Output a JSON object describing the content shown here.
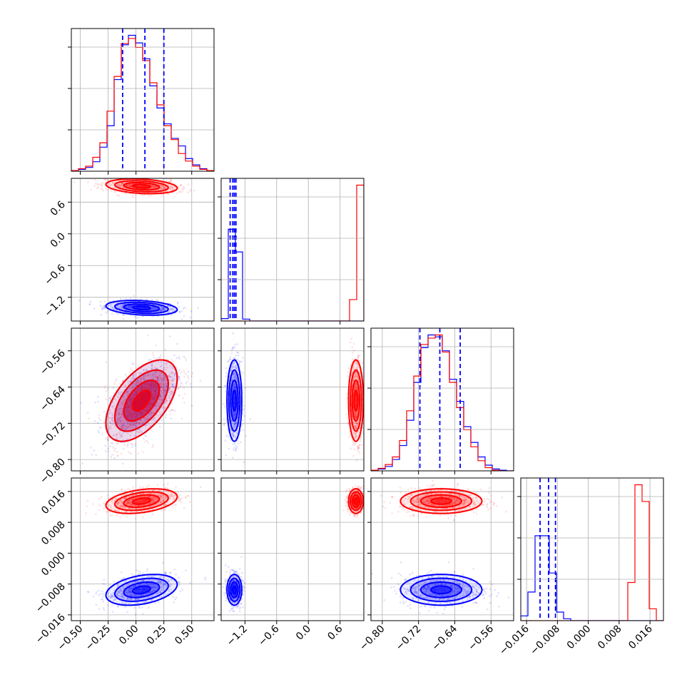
{
  "chart_data": {
    "type": "corner",
    "grid": true,
    "series": [
      {
        "color": "#ff0000",
        "means": [
          0.05,
          0.9,
          -0.67,
          0.0135
        ],
        "sds": [
          0.16,
          0.07,
          0.045,
          0.0016
        ]
      },
      {
        "color": "#0000ff",
        "means": [
          0.05,
          -1.4,
          -0.67,
          -0.0095
        ],
        "sds": [
          0.16,
          0.07,
          0.045,
          0.002
        ]
      }
    ],
    "quantiles": [
      {
        "values": [
          -0.12,
          0.08,
          0.25
        ]
      },
      {
        "values": [
          -1.48,
          -1.43,
          -1.4,
          -1.37
        ]
      },
      {
        "values": [
          -0.717,
          -0.673,
          -0.628
        ]
      },
      {
        "values": [
          -0.0125,
          -0.0103,
          -0.0085
        ]
      }
    ],
    "params": [
      {
        "range": [
          -0.58,
          0.7
        ],
        "ticks": [
          -0.5,
          -0.25,
          0.0,
          0.25,
          0.5
        ],
        "tick_labels": [
          "−0.50",
          "−0.25",
          "0.00",
          "0.25",
          "0.50"
        ]
      },
      {
        "range": [
          -1.65,
          1.05
        ],
        "ticks": [
          -1.2,
          -0.6,
          0.0,
          0.6
        ],
        "tick_labels": [
          "−1.2",
          "−0.6",
          "0.0",
          "0.6"
        ]
      },
      {
        "range": [
          -0.825,
          -0.51
        ],
        "ticks": [
          -0.8,
          -0.72,
          -0.64,
          -0.56
        ],
        "tick_labels": [
          "−0.80",
          "−0.72",
          "−0.64",
          "−0.56"
        ]
      },
      {
        "range": [
          -0.0175,
          0.0195
        ],
        "ticks": [
          -0.016,
          -0.008,
          0.0,
          0.008,
          0.016
        ],
        "tick_labels": [
          "−0.016",
          "−0.008",
          "0.000",
          "0.008",
          "0.016"
        ]
      }
    ],
    "histograms": [
      {
        "edges": [
          -0.58,
          -0.516,
          -0.452,
          -0.388,
          -0.324,
          -0.26,
          -0.196,
          -0.132,
          -0.068,
          -0.004,
          0.06,
          0.124,
          0.188,
          0.252,
          0.316,
          0.38,
          0.444,
          0.508,
          0.572,
          0.636,
          0.7
        ],
        "counts": {
          "red": [
            1,
            4,
            8,
            22,
            45,
            95,
            150,
            202,
            210,
            196,
            175,
            140,
            105,
            72,
            50,
            28,
            16,
            8,
            3,
            1
          ],
          "blue": [
            1,
            3,
            6,
            15,
            38,
            72,
            145,
            200,
            215,
            203,
            178,
            135,
            100,
            75,
            52,
            40,
            20,
            10,
            4,
            1
          ]
        }
      },
      {
        "edges": [
          -1.65,
          -1.515,
          -1.38,
          -1.245,
          -1.11,
          -0.975,
          -0.84,
          -0.705,
          -0.57,
          -0.435,
          -0.3,
          -0.165,
          -0.03,
          0.105,
          0.24,
          0.375,
          0.51,
          0.645,
          0.78,
          0.915,
          1.05
        ],
        "counts": {
          "red": [
            0,
            0,
            0,
            0,
            0,
            0,
            0,
            0,
            0,
            0,
            0,
            0,
            0,
            0,
            0,
            0,
            0,
            0,
            90,
            570
          ],
          "blue": [
            10,
            385,
            290,
            8,
            0,
            0,
            0,
            0,
            0,
            0,
            0,
            0,
            0,
            0,
            0,
            0,
            0,
            0,
            0,
            0
          ]
        }
      },
      {
        "edges": [
          -0.825,
          -0.80925,
          -0.7935,
          -0.77775,
          -0.762,
          -0.74625,
          -0.7305,
          -0.71475,
          -0.699,
          -0.68325,
          -0.6675,
          -0.65175,
          -0.636,
          -0.62025,
          -0.6045,
          -0.58875,
          -0.573,
          -0.55725,
          -0.5415,
          -0.52575,
          -0.51
        ],
        "counts": {
          "red": [
            1,
            4,
            10,
            22,
            48,
            95,
            150,
            200,
            210,
            215,
            188,
            140,
            100,
            65,
            38,
            16,
            5,
            1,
            0,
            0
          ],
          "blue": [
            1,
            3,
            7,
            18,
            40,
            80,
            140,
            195,
            215,
            212,
            190,
            145,
            110,
            70,
            45,
            22,
            9,
            3,
            1,
            0
          ]
        }
      },
      {
        "edges": [
          -0.0175,
          -0.01565,
          -0.0138,
          -0.01195,
          -0.0101,
          -0.00825,
          -0.0064,
          -0.00455,
          -0.0027,
          -0.00085,
          0.001,
          0.00285,
          0.0047,
          0.00655,
          0.0084,
          0.01025,
          0.0121,
          0.01395,
          0.0158,
          0.01765,
          0.0195
        ],
        "counts": {
          "red": [
            0,
            0,
            0,
            0,
            0,
            0,
            0,
            0,
            0,
            0,
            0,
            0,
            0,
            0,
            0,
            80,
            285,
            250,
            25,
            0
          ],
          "blue": [
            10,
            60,
            178,
            178,
            100,
            18,
            4,
            0,
            0,
            0,
            0,
            0,
            0,
            0,
            0,
            0,
            0,
            0,
            0,
            0
          ]
        }
      }
    ]
  }
}
